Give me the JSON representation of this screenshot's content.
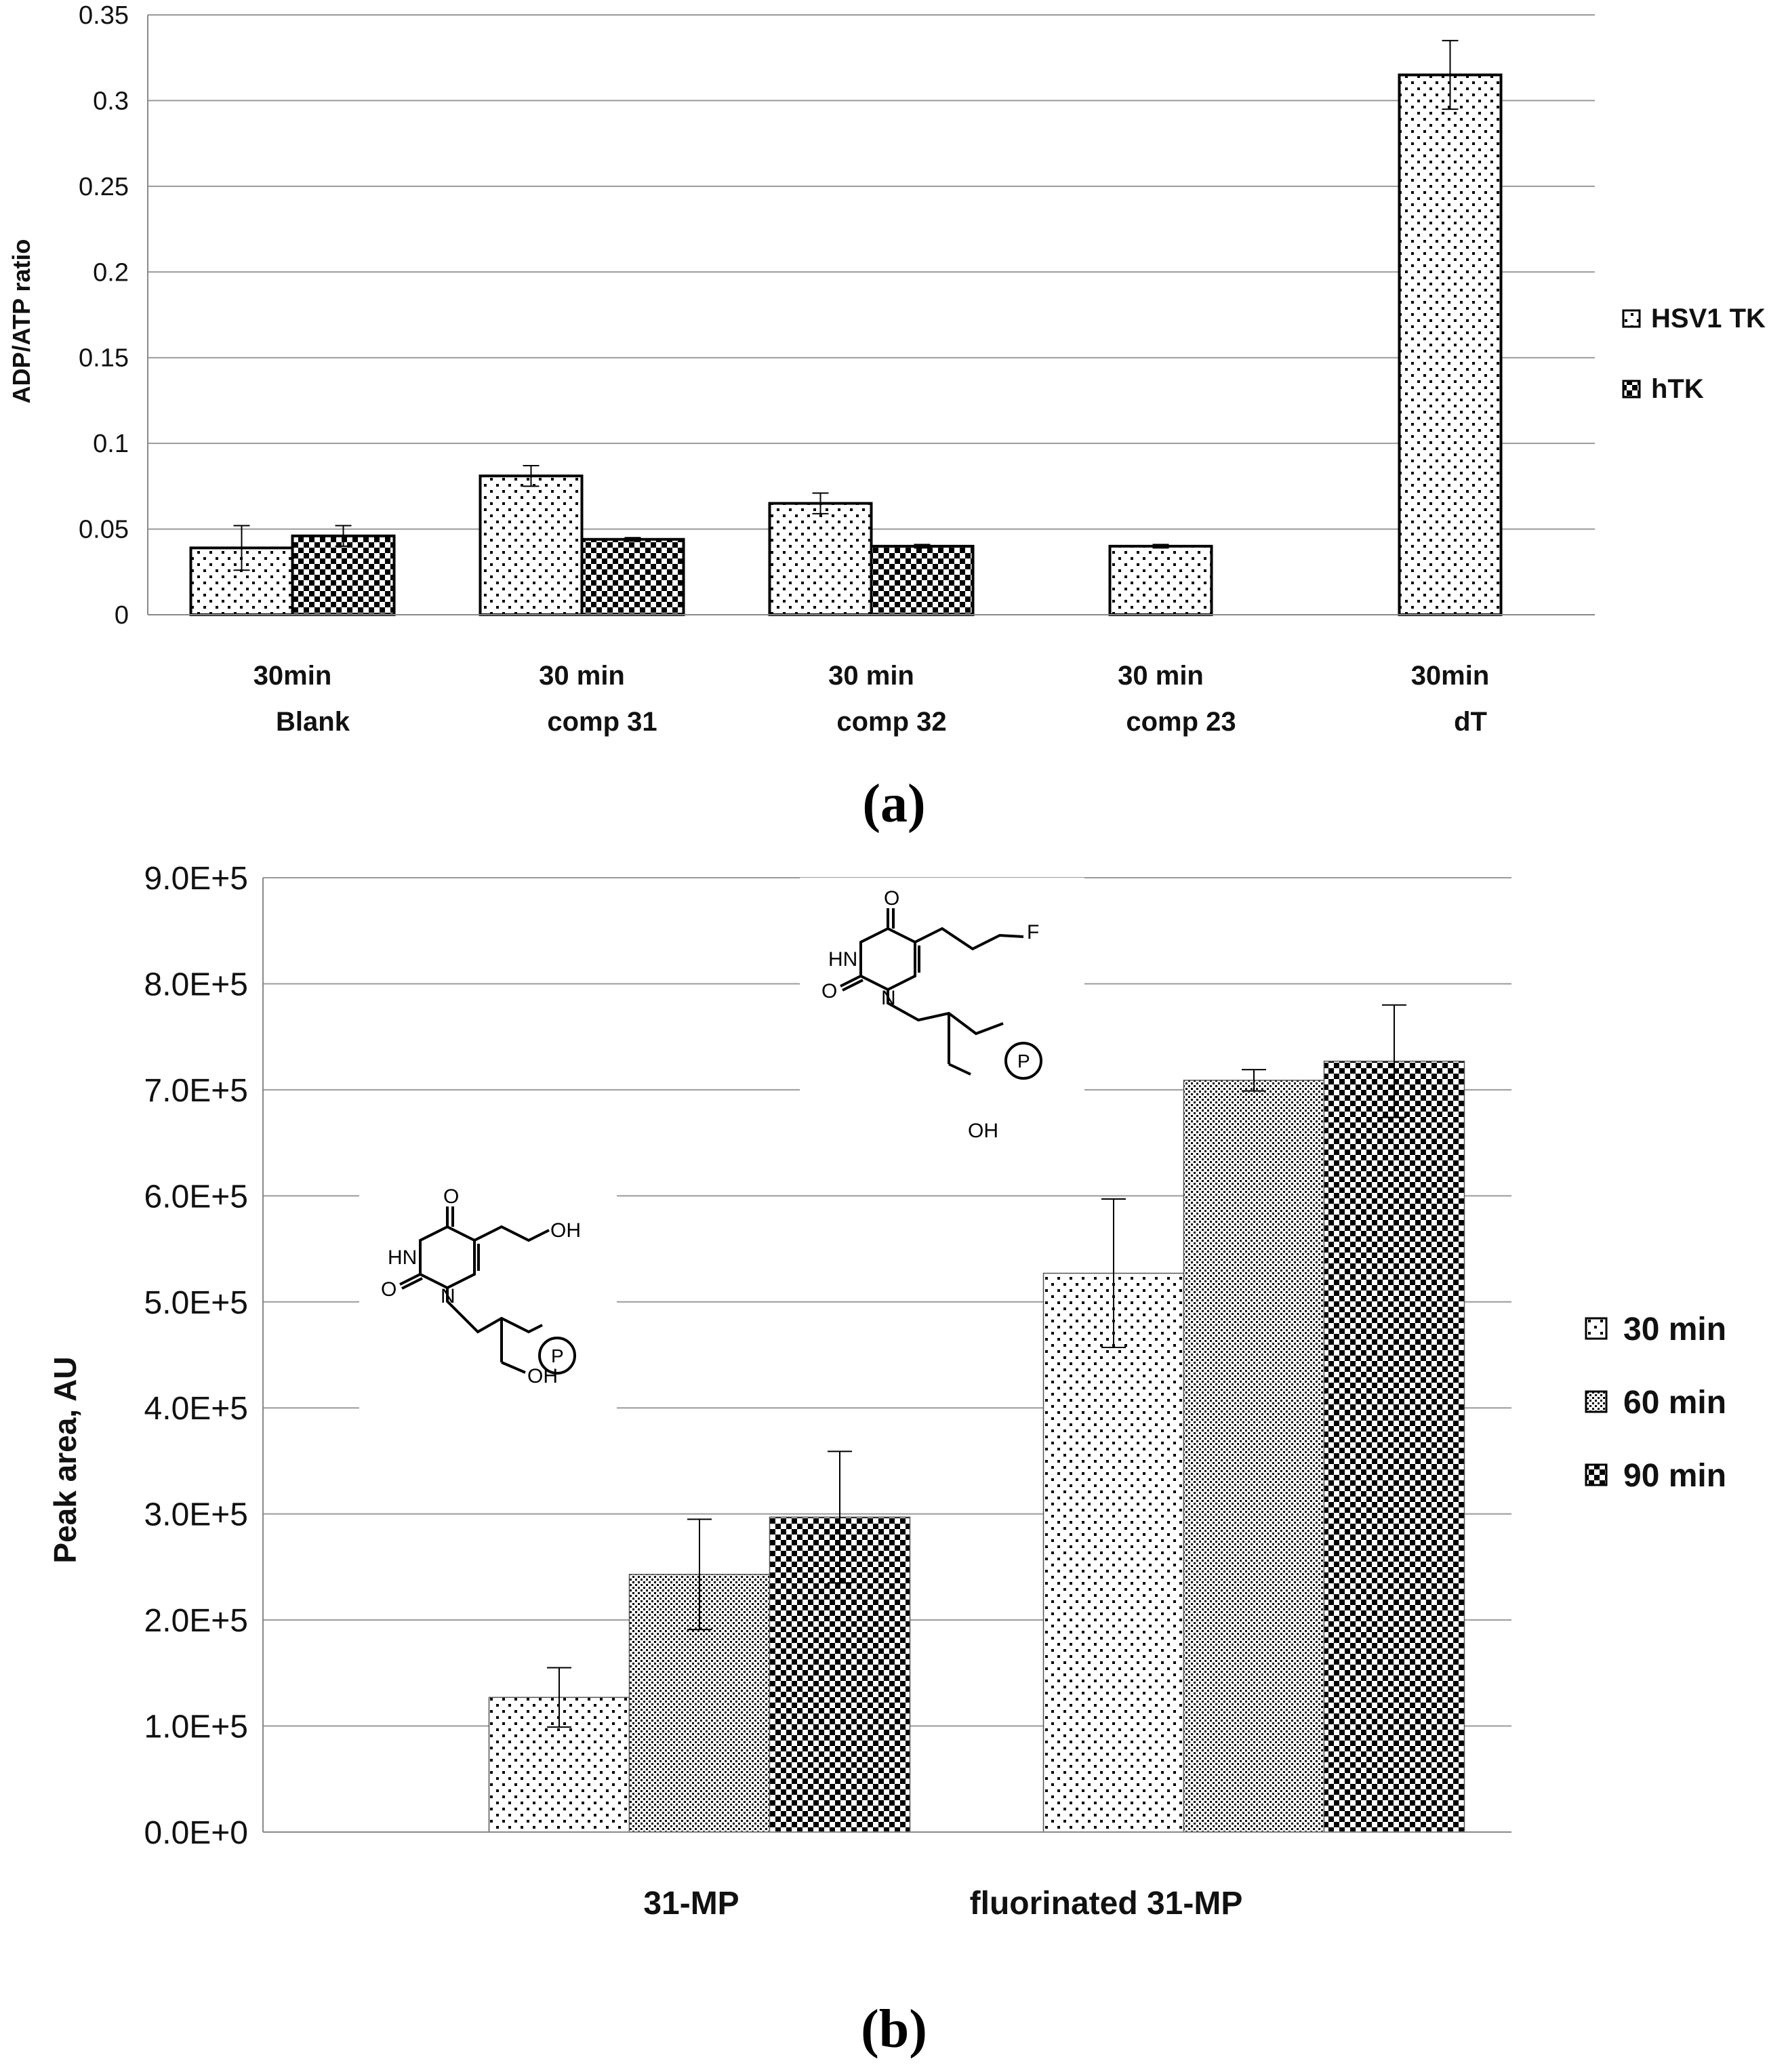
{
  "chart_data": [
    {
      "panel_label": "(a)",
      "type": "bar",
      "title": "",
      "ylabel": "ADP/ATP ratio",
      "xlabel": "",
      "ylim": [
        0,
        0.35
      ],
      "yticks": [
        0,
        0.05,
        0.1,
        0.15,
        0.2,
        0.25,
        0.3,
        0.35
      ],
      "ytick_labels": [
        "0",
        "0.05",
        "0.1",
        "0.15",
        "0.2",
        "0.25",
        "0.3",
        "0.35"
      ],
      "grid": true,
      "legend_position": "right",
      "categories": [
        {
          "time": "30min",
          "name": "Blank"
        },
        {
          "time": "30 min",
          "name": "comp 31"
        },
        {
          "time": "30 min",
          "name": "comp 32"
        },
        {
          "time": "30 min",
          "name": "comp 23"
        },
        {
          "time": "30min",
          "name": "dT"
        }
      ],
      "series": [
        {
          "name": "HSV1 TK",
          "pattern": "sparse-dots",
          "values": [
            0.039,
            0.081,
            0.065,
            0.04,
            0.315
          ],
          "errors": [
            0.013,
            0.006,
            0.006,
            0.001,
            0.02
          ]
        },
        {
          "name": "hTK",
          "pattern": "checker",
          "values": [
            0.046,
            0.044,
            0.04,
            null,
            null
          ],
          "errors": [
            0.006,
            0.001,
            0.001,
            null,
            null
          ]
        }
      ]
    },
    {
      "panel_label": "(b)",
      "type": "bar",
      "title": "",
      "ylabel": "Peak area, AU",
      "xlabel": "",
      "ylim": [
        0,
        900000
      ],
      "yticks": [
        0,
        100000,
        200000,
        300000,
        400000,
        500000,
        600000,
        700000,
        800000,
        900000
      ],
      "ytick_labels": [
        "0.0E+0",
        "1.0E+5",
        "2.0E+5",
        "3.0E+5",
        "4.0E+5",
        "5.0E+5",
        "6.0E+5",
        "7.0E+5",
        "8.0E+5",
        "9.0E+5"
      ],
      "grid": true,
      "legend_position": "right",
      "categories": [
        "31-MP",
        "fluorinated 31-MP"
      ],
      "series": [
        {
          "name": "30 min",
          "pattern": "sparse-dots",
          "values": [
            127000,
            527000
          ],
          "errors": [
            28000,
            70000
          ]
        },
        {
          "name": "60 min",
          "pattern": "fine-dots",
          "values": [
            243000,
            709000
          ],
          "errors": [
            52000,
            10000
          ]
        },
        {
          "name": "90 min",
          "pattern": "checker",
          "values": [
            297000,
            727000
          ],
          "errors": [
            62000,
            53000
          ]
        }
      ],
      "annotations": {
        "structure_1": {
          "substituent": "OH",
          "ring_nh": "HN",
          "ring_n": "N",
          "carbonyl_o": "O",
          "phosphate": "P",
          "hydroxyl": "OH"
        },
        "structure_2": {
          "substituent": "F",
          "ring_nh": "HN",
          "ring_n": "N",
          "carbonyl_o": "O",
          "phosphate": "P",
          "hydroxyl": "OH"
        }
      }
    }
  ]
}
